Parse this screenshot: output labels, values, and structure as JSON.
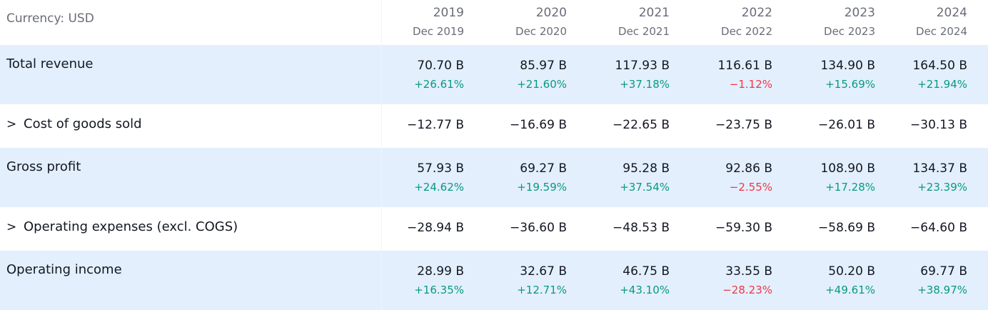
{
  "header": {
    "currency_label": "Currency: USD",
    "columns": [
      {
        "year": "2019",
        "period": "Dec 2019"
      },
      {
        "year": "2020",
        "period": "Dec 2020"
      },
      {
        "year": "2021",
        "period": "Dec 2021"
      },
      {
        "year": "2022",
        "period": "Dec 2022"
      },
      {
        "year": "2023",
        "period": "Dec 2023"
      },
      {
        "year": "2024",
        "period": "Dec 2024"
      }
    ]
  },
  "rows": [
    {
      "label": "Total revenue",
      "expandable": false,
      "values": [
        "70.70 B",
        "85.97 B",
        "117.93 B",
        "116.61 B",
        "134.90 B",
        "164.50 B"
      ],
      "changes": [
        "+26.61%",
        "+21.60%",
        "+37.18%",
        "−1.12%",
        "+15.69%",
        "+21.94%"
      ]
    },
    {
      "label": "Cost of goods sold",
      "expandable": true,
      "chevron": ">",
      "values": [
        "−12.77 B",
        "−16.69 B",
        "−22.65 B",
        "−23.75 B",
        "−26.01 B",
        "−30.13 B"
      ]
    },
    {
      "label": "Gross profit",
      "expandable": false,
      "values": [
        "57.93 B",
        "69.27 B",
        "95.28 B",
        "92.86 B",
        "108.90 B",
        "134.37 B"
      ],
      "changes": [
        "+24.62%",
        "+19.59%",
        "+37.54%",
        "−2.55%",
        "+17.28%",
        "+23.39%"
      ]
    },
    {
      "label": "Operating expenses (excl. COGS)",
      "expandable": true,
      "chevron": ">",
      "values": [
        "−28.94 B",
        "−36.60 B",
        "−48.53 B",
        "−59.30 B",
        "−58.69 B",
        "−64.60 B"
      ]
    },
    {
      "label": "Operating income",
      "expandable": false,
      "values": [
        "28.99 B",
        "32.67 B",
        "46.75 B",
        "33.55 B",
        "50.20 B",
        "69.77 B"
      ],
      "changes": [
        "+16.35%",
        "+12.71%",
        "+43.10%",
        "−28.23%",
        "+49.61%",
        "+38.97%"
      ]
    }
  ],
  "colors": {
    "shaded_row_bg": "#e3effd",
    "positive": "#089981",
    "negative": "#f23645",
    "muted_text": "#6a6d78",
    "text": "#131722"
  },
  "icons": {
    "expand": "chevron-right-icon"
  }
}
